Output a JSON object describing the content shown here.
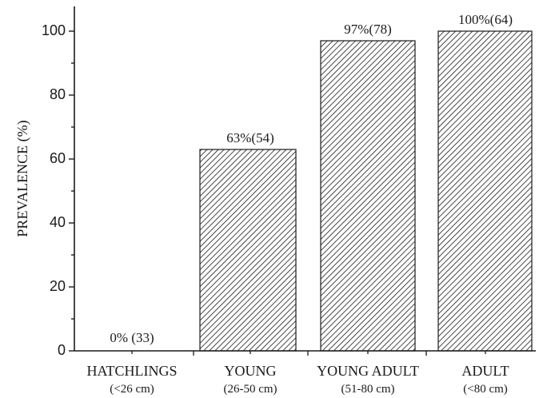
{
  "chart_data": {
    "type": "bar",
    "title": "",
    "xlabel": "",
    "ylabel": "PREVALENCE (%)",
    "ylim": [
      0,
      108
    ],
    "yticks": [
      0,
      20,
      40,
      60,
      80,
      100
    ],
    "categories": [
      "HATCHLINGS",
      "YOUNG",
      "YOUNG ADULT",
      "ADULT"
    ],
    "category_sublabels": [
      "(<26 cm)",
      "(26-50 cm)",
      "(51-80 cm)",
      "(<80 cm)"
    ],
    "values": [
      0,
      63,
      97,
      100
    ],
    "data_labels": [
      "0% (33)",
      "63%(54)",
      "97%(78)",
      "100%(64)"
    ],
    "grid": false,
    "fill_pattern": "diagonal-hatch",
    "colors": {
      "stroke": "#1a1a1a",
      "hatch": "#1a1a1a",
      "background": "#ffffff"
    }
  }
}
